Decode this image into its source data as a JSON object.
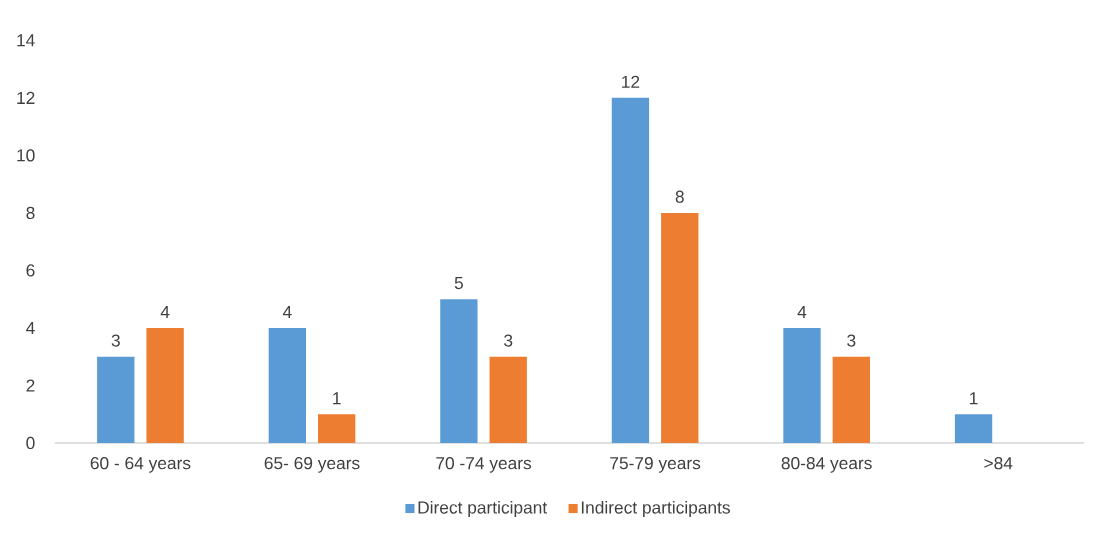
{
  "chart_data": {
    "type": "bar",
    "categories": [
      "60 - 64 years",
      "65- 69 years",
      "70 -74 years",
      "75-79 years",
      "80-84 years",
      ">84"
    ],
    "series": [
      {
        "name": "Direct participant",
        "color": "#5b9bd5",
        "values": [
          3,
          4,
          5,
          12,
          4,
          1
        ]
      },
      {
        "name": "Indirect participants",
        "color": "#ed7d31",
        "values": [
          4,
          1,
          3,
          8,
          3,
          null
        ]
      }
    ],
    "ylim": [
      0,
      14
    ],
    "yticks": [
      0,
      2,
      4,
      6,
      8,
      10,
      12,
      14
    ],
    "data_labels": true,
    "legend": "bottom",
    "grid": false
  }
}
